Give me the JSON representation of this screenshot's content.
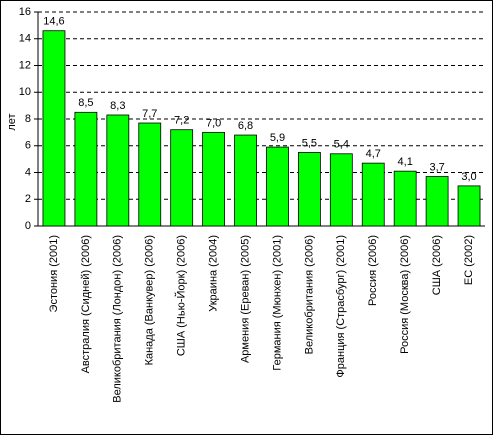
{
  "chart_data": {
    "type": "bar",
    "y_label": "лет",
    "categories": [
      "Эстония (2001)",
      "Австралия (Сидней) (2006)",
      "Великобритания (Лондон) (2006)",
      "Канада (Ванкувер) (2006)",
      "США (Нью-Йорк) (2006)",
      "Украина (2004)",
      "Армения (Ереван) (2005)",
      "Германия (Мюнхен) (2001)",
      "Великобритания (2006)",
      "Франция (Страсбург) (2001)",
      "Россия (2006)",
      "Россия (Москва) (2006)",
      "США (2006)",
      "ЕС (2002)"
    ],
    "values": [
      14.6,
      8.5,
      8.3,
      7.7,
      7.2,
      7.0,
      6.8,
      5.9,
      5.5,
      5.4,
      4.7,
      4.1,
      3.7,
      3.0
    ],
    "value_labels": [
      "14,6",
      "8,5",
      "8,3",
      "7,7",
      "7,2",
      "7,0",
      "6,8",
      "5,9",
      "5,5",
      "5,4",
      "4,7",
      "4,1",
      "3,7",
      "3,0"
    ],
    "color": "#00ff00",
    "ylim": [
      0,
      16
    ],
    "yticks": [
      0,
      2,
      4,
      6,
      8,
      10,
      12,
      14,
      16
    ],
    "grid": true
  }
}
